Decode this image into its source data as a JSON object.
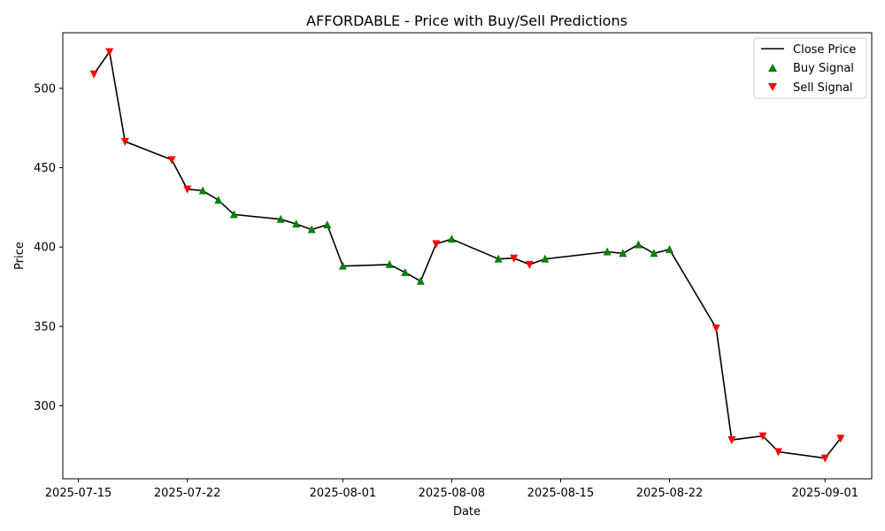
{
  "chart_data": {
    "type": "line",
    "title": "AFFORDABLE - Price with Buy/Sell Predictions",
    "xlabel": "Date",
    "ylabel": "Price",
    "xlim": [
      "2025-07-14",
      "2025-09-04"
    ],
    "ylim": [
      254,
      535
    ],
    "x_ticks": [
      "2025-07-15",
      "2025-07-22",
      "2025-08-01",
      "2025-08-08",
      "2025-08-15",
      "2025-08-22",
      "2025-09-01"
    ],
    "y_ticks": [
      300,
      350,
      400,
      450,
      500
    ],
    "grid": false,
    "legend_position": "top-right",
    "legend": [
      {
        "label": "Close Price",
        "marker": "line",
        "color": "#000000"
      },
      {
        "label": "Buy Signal",
        "marker": "triangle-up",
        "color": "#008000"
      },
      {
        "label": "Sell Signal",
        "marker": "triangle-down",
        "color": "#ff0000"
      }
    ],
    "series": [
      {
        "name": "Close Price",
        "x": [
          "2025-07-16",
          "2025-07-17",
          "2025-07-18",
          "2025-07-21",
          "2025-07-22",
          "2025-07-23",
          "2025-07-24",
          "2025-07-25",
          "2025-07-28",
          "2025-07-29",
          "2025-07-30",
          "2025-07-31",
          "2025-08-01",
          "2025-08-04",
          "2025-08-05",
          "2025-08-06",
          "2025-08-07",
          "2025-08-08",
          "2025-08-11",
          "2025-08-12",
          "2025-08-13",
          "2025-08-14",
          "2025-08-18",
          "2025-08-19",
          "2025-08-20",
          "2025-08-21",
          "2025-08-22",
          "2025-08-25",
          "2025-08-26",
          "2025-08-28",
          "2025-08-29",
          "2025-09-01",
          "2025-09-02"
        ],
        "y": [
          509,
          523,
          466.5,
          455,
          436.5,
          435.5,
          429.5,
          420.5,
          417.5,
          414.5,
          411,
          414,
          388,
          389,
          384,
          378.5,
          402,
          405,
          392.5,
          393,
          389,
          392.5,
          397,
          396,
          401.5,
          396,
          398.5,
          349,
          278.5,
          281,
          271,
          267,
          279.5
        ]
      },
      {
        "name": "Buy Signal",
        "x": [
          "2025-07-23",
          "2025-07-24",
          "2025-07-25",
          "2025-07-28",
          "2025-07-29",
          "2025-07-30",
          "2025-07-31",
          "2025-08-01",
          "2025-08-04",
          "2025-08-05",
          "2025-08-06",
          "2025-08-08",
          "2025-08-11",
          "2025-08-14",
          "2025-08-18",
          "2025-08-19",
          "2025-08-20",
          "2025-08-21",
          "2025-08-22"
        ],
        "y": [
          435.5,
          429.5,
          420.5,
          417.5,
          414.5,
          411,
          414,
          388,
          389,
          384,
          378.5,
          405,
          392.5,
          392.5,
          397,
          396,
          401.5,
          396,
          398.5
        ]
      },
      {
        "name": "Sell Signal",
        "x": [
          "2025-07-16",
          "2025-07-17",
          "2025-07-18",
          "2025-07-21",
          "2025-07-22",
          "2025-08-07",
          "2025-08-12",
          "2025-08-13",
          "2025-08-25",
          "2025-08-26",
          "2025-08-28",
          "2025-08-29",
          "2025-09-01",
          "2025-09-02"
        ],
        "y": [
          509,
          523,
          466.5,
          455,
          436.5,
          402,
          393,
          389,
          349,
          278.5,
          281,
          271,
          267,
          279.5
        ]
      }
    ]
  }
}
